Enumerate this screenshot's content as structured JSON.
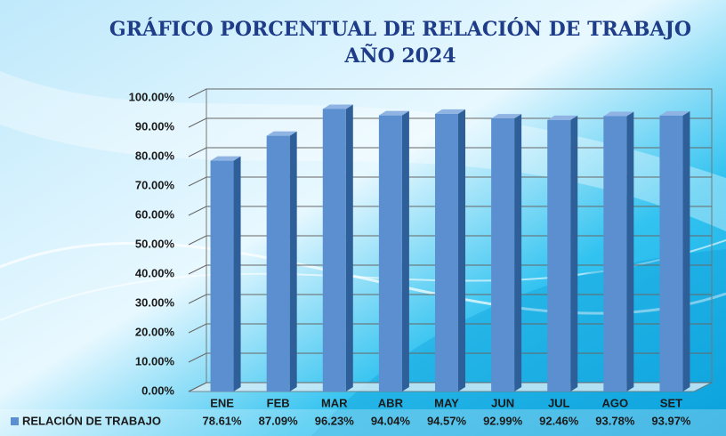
{
  "chart_data": {
    "type": "bar",
    "title": "GRÁFICO PORCENTUAL DE RELACIÓN DE TRABAJO AÑO 2024",
    "categories": [
      "ENE",
      "FEB",
      "MAR",
      "ABR",
      "MAY",
      "JUN",
      "JUL",
      "AGO",
      "SET"
    ],
    "series": [
      {
        "name": "RELACIÓN DE TRABAJO",
        "color": "#5b8fd0",
        "values": [
          78.61,
          87.09,
          96.23,
          94.04,
          94.57,
          92.99,
          92.46,
          93.78,
          93.97
        ],
        "value_labels": [
          "78.61%",
          "87.09%",
          "96.23%",
          "94.04%",
          "94.57%",
          "92.99%",
          "92.46%",
          "93.78%",
          "93.97%"
        ]
      }
    ],
    "ylim": [
      0,
      100
    ],
    "yticks": [
      {
        "value": 0,
        "label": "0.00%"
      },
      {
        "value": 10,
        "label": "10.00%"
      },
      {
        "value": 20,
        "label": "20.00%"
      },
      {
        "value": 30,
        "label": "30.00%"
      },
      {
        "value": 40,
        "label": "40.00%"
      },
      {
        "value": 50,
        "label": "50.00%"
      },
      {
        "value": 60,
        "label": "60.00%"
      },
      {
        "value": 70,
        "label": "70.00%"
      },
      {
        "value": 80,
        "label": "80.00%"
      },
      {
        "value": 90,
        "label": "90.00%"
      },
      {
        "value": 100,
        "label": "100.00%"
      }
    ],
    "grid": true
  }
}
